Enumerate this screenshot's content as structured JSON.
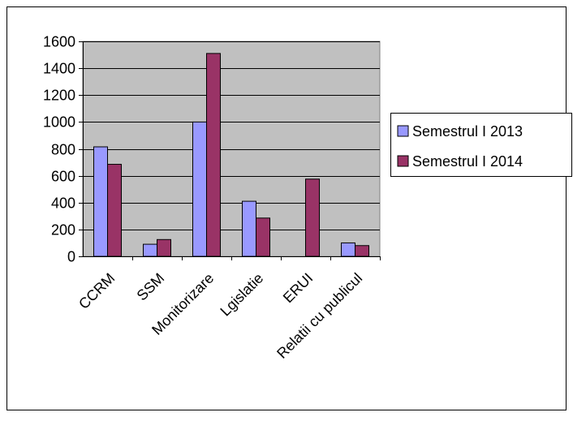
{
  "chart_data": {
    "type": "bar",
    "title": "",
    "xlabel": "",
    "ylabel": "",
    "categories": [
      "CCRM",
      "SSM",
      "Monitorizare",
      "Lgislatie",
      "ERUI",
      "Relatii cu publicul"
    ],
    "series": [
      {
        "name": "Semestrul I 2013",
        "color": "#9999ff",
        "values": [
          815,
          90,
          1000,
          410,
          0,
          100
        ]
      },
      {
        "name": "Semestrul I 2014",
        "color": "#993366",
        "values": [
          685,
          125,
          1510,
          285,
          575,
          80
        ]
      }
    ],
    "ylim": [
      0,
      1600
    ],
    "yticks": [
      0,
      200,
      400,
      600,
      800,
      1000,
      1200,
      1400,
      1600
    ],
    "grid": true,
    "plot_background": "#c0c0c0",
    "legend_position": "right"
  }
}
